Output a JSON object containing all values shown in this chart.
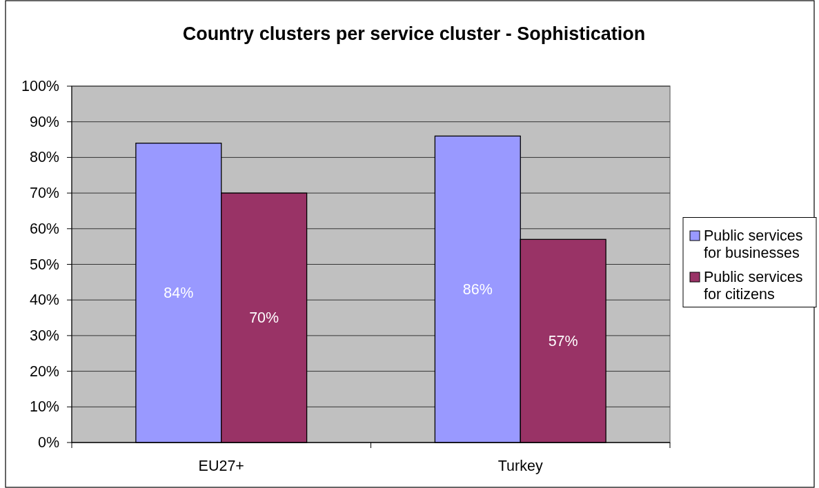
{
  "chart_data": {
    "type": "bar",
    "title": "Country clusters per service cluster - Sophistication",
    "categories": [
      "EU27+",
      "Turkey"
    ],
    "series": [
      {
        "name": "Public services for businesses",
        "color": "#9999ff",
        "values": [
          84,
          86
        ],
        "value_labels": [
          "84%",
          "86%"
        ]
      },
      {
        "name": "Public services for citizens",
        "color": "#993366",
        "values": [
          70,
          57
        ],
        "value_labels": [
          "70%",
          "57%"
        ]
      }
    ],
    "ylim": [
      0,
      100
    ],
    "yticks": [
      {
        "value": 0,
        "label": "0%"
      },
      {
        "value": 10,
        "label": "10%"
      },
      {
        "value": 20,
        "label": "20%"
      },
      {
        "value": 30,
        "label": "30%"
      },
      {
        "value": 40,
        "label": "40%"
      },
      {
        "value": 50,
        "label": "50%"
      },
      {
        "value": 60,
        "label": "60%"
      },
      {
        "value": 70,
        "label": "70%"
      },
      {
        "value": 80,
        "label": "80%"
      },
      {
        "value": 90,
        "label": "90%"
      },
      {
        "value": 100,
        "label": "100%"
      }
    ],
    "grid": "y",
    "legend": "right"
  }
}
